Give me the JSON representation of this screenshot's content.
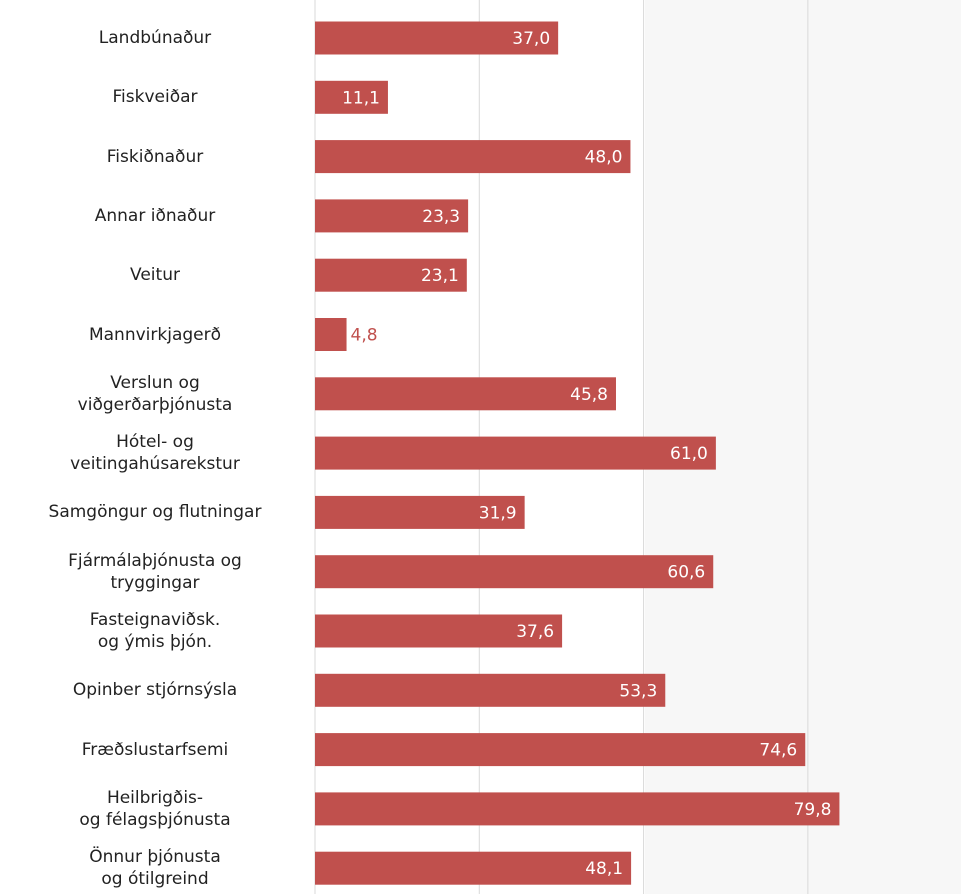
{
  "chart_data": {
    "type": "bar",
    "orientation": "horizontal",
    "color": "#c0504d",
    "categories": [
      "Landbúnaður",
      "Fiskveiðar",
      "Fiskiðnaður",
      "Annar iðnaður",
      "Veitur",
      "Mannvirkjagerð",
      "Verslun og\nviðgerðarþjónusta",
      "Hótel- og\nveitingahúsarekstur",
      "Samgöngur og flutningar",
      "Fjármálaþjónusta og\ntryggingar",
      "Fasteignaviðsk.\nog ýmis þjón.",
      "Opinber stjórnsýsla",
      "Fræðslustarfsemi",
      "Heilbrigðis-\nog félagsþjónusta",
      "Önnur þjónusta\nog ótilgreind"
    ],
    "values": [
      37.0,
      11.1,
      48.0,
      23.3,
      23.1,
      4.8,
      45.8,
      61.0,
      31.9,
      60.6,
      37.6,
      53.3,
      74.6,
      79.8,
      48.1
    ],
    "value_labels": [
      "37,0",
      "11,1",
      "48,0",
      "23,3",
      "23,1",
      "4,8",
      "45,8",
      "61,0",
      "31,9",
      "60,6",
      "37,6",
      "53,3",
      "74,6",
      "79,8",
      "48,1"
    ],
    "xlim": [
      0,
      98.3
    ],
    "xticks": [
      0,
      25,
      50,
      75
    ],
    "grid": true
  }
}
